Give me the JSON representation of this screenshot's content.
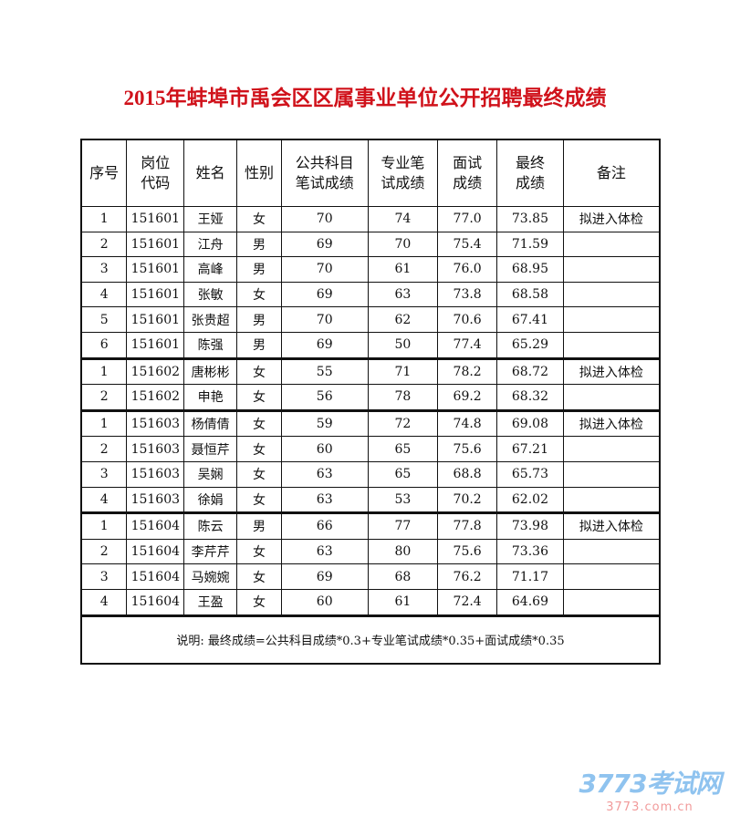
{
  "title": "2015年蚌埠市禹会区区属事业单位公开招聘最终成绩",
  "headers": [
    "序号",
    "岗位\n代码",
    "姓名",
    "性别",
    "公共科目\n笔试成绩",
    "专业笔\n试成绩",
    "面试\n成绩",
    "最终\n成绩",
    "备注"
  ],
  "rows": [
    [
      "1",
      "151601",
      "王娅",
      "女",
      "70",
      "74",
      "77.0",
      "73.85",
      "拟进入体检"
    ],
    [
      "2",
      "151601",
      "江舟",
      "男",
      "69",
      "70",
      "75.4",
      "71.59",
      ""
    ],
    [
      "3",
      "151601",
      "高峰",
      "男",
      "70",
      "61",
      "76.0",
      "68.95",
      ""
    ],
    [
      "4",
      "151601",
      "张敏",
      "女",
      "69",
      "63",
      "73.8",
      "68.58",
      ""
    ],
    [
      "5",
      "151601",
      "张贵超",
      "男",
      "70",
      "62",
      "70.6",
      "67.41",
      ""
    ],
    [
      "6",
      "151601",
      "陈强",
      "男",
      "69",
      "50",
      "77.4",
      "65.29",
      ""
    ],
    [
      "1",
      "151602",
      "唐彬彬",
      "女",
      "55",
      "71",
      "78.2",
      "68.72",
      "拟进入体检"
    ],
    [
      "2",
      "151602",
      "申艳",
      "女",
      "56",
      "78",
      "69.2",
      "68.32",
      ""
    ],
    [
      "1",
      "151603",
      "杨倩倩",
      "女",
      "59",
      "72",
      "74.8",
      "69.08",
      "拟进入体检"
    ],
    [
      "2",
      "151603",
      "聂恒芹",
      "女",
      "60",
      "65",
      "75.6",
      "67.21",
      ""
    ],
    [
      "3",
      "151603",
      "吴娴",
      "女",
      "63",
      "65",
      "68.8",
      "65.73",
      ""
    ],
    [
      "4",
      "151603",
      "徐娟",
      "女",
      "63",
      "53",
      "70.2",
      "62.02",
      ""
    ],
    [
      "1",
      "151604",
      "陈云",
      "男",
      "66",
      "77",
      "77.8",
      "73.98",
      "拟进入体检"
    ],
    [
      "2",
      "151604",
      "李芹芹",
      "女",
      "63",
      "80",
      "75.6",
      "73.36",
      ""
    ],
    [
      "3",
      "151604",
      "马婉婉",
      "女",
      "69",
      "68",
      "76.2",
      "71.17",
      ""
    ],
    [
      "4",
      "151604",
      "王盈",
      "女",
      "60",
      "61",
      "72.4",
      "64.69",
      ""
    ]
  ],
  "note": "说明: 最终成绩=公共科目成绩*0.3+专业笔试成绩*0.35+面试成绩*0.35",
  "watermark": {
    "logo": "3773考试网",
    "domain": "3773.com.cn"
  }
}
